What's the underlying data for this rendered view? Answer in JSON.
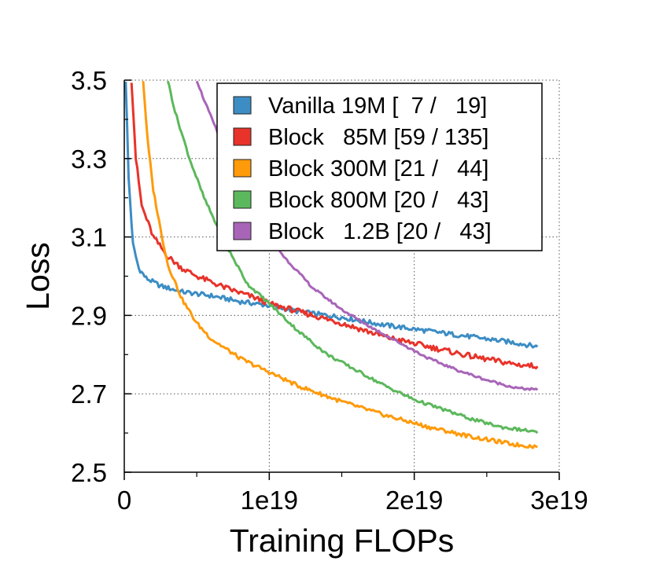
{
  "chart_data": {
    "type": "line",
    "xlabel": "Training FLOPs",
    "ylabel": "Loss",
    "xlim": [
      0,
      3e+19
    ],
    "ylim": [
      2.5,
      3.5
    ],
    "xticks": [
      {
        "value": 0,
        "label": "0"
      },
      {
        "value": 1e+19,
        "label": "1e19"
      },
      {
        "value": 2e+19,
        "label": "2e19"
      },
      {
        "value": 3e+19,
        "label": "3e19"
      }
    ],
    "yticks": [
      {
        "value": 2.5,
        "label": "2.5"
      },
      {
        "value": 2.7,
        "label": "2.7"
      },
      {
        "value": 2.9,
        "label": "2.9"
      },
      {
        "value": 3.1,
        "label": "3.1"
      },
      {
        "value": 3.3,
        "label": "3.3"
      },
      {
        "value": 3.5,
        "label": "3.5"
      }
    ],
    "x_minor_ticks": [
      5e+18,
      1.5e+19,
      2.5e+19
    ],
    "y_minor_ticks": [
      2.6,
      2.8,
      3.0,
      3.2,
      3.4
    ],
    "grid": true,
    "legend_position": "top-right",
    "series": [
      {
        "name": "Vanilla 19M [  7 /   19]",
        "color": "#3c8dc4",
        "noise": 0.006,
        "points": [
          [
            1e+17,
            3.5
          ],
          [
            3e+17,
            3.25
          ],
          [
            6e+17,
            3.08
          ],
          [
            1e+18,
            3.02
          ],
          [
            1.5e+18,
            2.995
          ],
          [
            2.5e+18,
            2.975
          ],
          [
            4e+18,
            2.96
          ],
          [
            6e+18,
            2.95
          ],
          [
            8e+18,
            2.935
          ],
          [
            1e+19,
            2.925
          ],
          [
            1.2e+19,
            2.91
          ],
          [
            1.5e+19,
            2.895
          ],
          [
            1.8e+19,
            2.875
          ],
          [
            2.1e+19,
            2.86
          ],
          [
            2.4e+19,
            2.845
          ],
          [
            2.7e+19,
            2.83
          ],
          [
            2.85e+19,
            2.82
          ]
        ]
      },
      {
        "name": "Block   85M [59 / 135]",
        "color": "#e8332a",
        "noise": 0.007,
        "points": [
          [
            5e+17,
            3.5
          ],
          [
            8e+17,
            3.3
          ],
          [
            1.2e+18,
            3.18
          ],
          [
            2e+18,
            3.1
          ],
          [
            3e+18,
            3.05
          ],
          [
            4e+18,
            3.02
          ],
          [
            5e+18,
            3.0
          ],
          [
            7e+18,
            2.97
          ],
          [
            9e+18,
            2.945
          ],
          [
            1e+19,
            2.93
          ],
          [
            1.2e+19,
            2.91
          ],
          [
            1.5e+19,
            2.88
          ],
          [
            1.8e+19,
            2.845
          ],
          [
            2.1e+19,
            2.82
          ],
          [
            2.4e+19,
            2.795
          ],
          [
            2.7e+19,
            2.775
          ],
          [
            2.85e+19,
            2.77
          ]
        ]
      },
      {
        "name": "Block 300M [21 /   44]",
        "color": "#ff9a0a",
        "noise": 0.005,
        "points": [
          [
            1.3e+18,
            3.5
          ],
          [
            1.6e+18,
            3.35
          ],
          [
            2e+18,
            3.22
          ],
          [
            2.5e+18,
            3.12
          ],
          [
            3e+18,
            3.03
          ],
          [
            4e+18,
            2.94
          ],
          [
            5e+18,
            2.88
          ],
          [
            6e+18,
            2.84
          ],
          [
            8e+18,
            2.79
          ],
          [
            1e+19,
            2.755
          ],
          [
            1.2e+19,
            2.72
          ],
          [
            1.5e+19,
            2.68
          ],
          [
            1.8e+19,
            2.645
          ],
          [
            2.1e+19,
            2.615
          ],
          [
            2.4e+19,
            2.59
          ],
          [
            2.7e+19,
            2.57
          ],
          [
            2.85e+19,
            2.565
          ]
        ]
      },
      {
        "name": "Block 800M [20 /   43]",
        "color": "#5cb85c",
        "noise": 0.004,
        "points": [
          [
            3e+18,
            3.5
          ],
          [
            3.5e+18,
            3.42
          ],
          [
            4.5e+18,
            3.3
          ],
          [
            5.5e+18,
            3.2
          ],
          [
            7e+18,
            3.08
          ],
          [
            8.5e+18,
            2.98
          ],
          [
            1e+19,
            2.93
          ],
          [
            1.2e+19,
            2.86
          ],
          [
            1.4e+19,
            2.8
          ],
          [
            1.6e+19,
            2.76
          ],
          [
            1.8e+19,
            2.72
          ],
          [
            2e+19,
            2.685
          ],
          [
            2.2e+19,
            2.66
          ],
          [
            2.4e+19,
            2.635
          ],
          [
            2.6e+19,
            2.615
          ],
          [
            2.8e+19,
            2.605
          ],
          [
            2.85e+19,
            2.6
          ]
        ]
      },
      {
        "name": "Block   1.2B [20 /   43]",
        "color": "#a865b8",
        "noise": 0.003,
        "points": [
          [
            5e+18,
            3.5
          ],
          [
            5.5e+18,
            3.45
          ],
          [
            6.5e+18,
            3.36
          ],
          [
            8e+18,
            3.24
          ],
          [
            9.5e+18,
            3.13
          ],
          [
            1.1e+19,
            3.05
          ],
          [
            1.3e+19,
            2.97
          ],
          [
            1.5e+19,
            2.915
          ],
          [
            1.7e+19,
            2.87
          ],
          [
            1.9e+19,
            2.83
          ],
          [
            2.1e+19,
            2.79
          ],
          [
            2.3e+19,
            2.76
          ],
          [
            2.5e+19,
            2.735
          ],
          [
            2.7e+19,
            2.715
          ],
          [
            2.85e+19,
            2.71
          ]
        ]
      }
    ]
  }
}
